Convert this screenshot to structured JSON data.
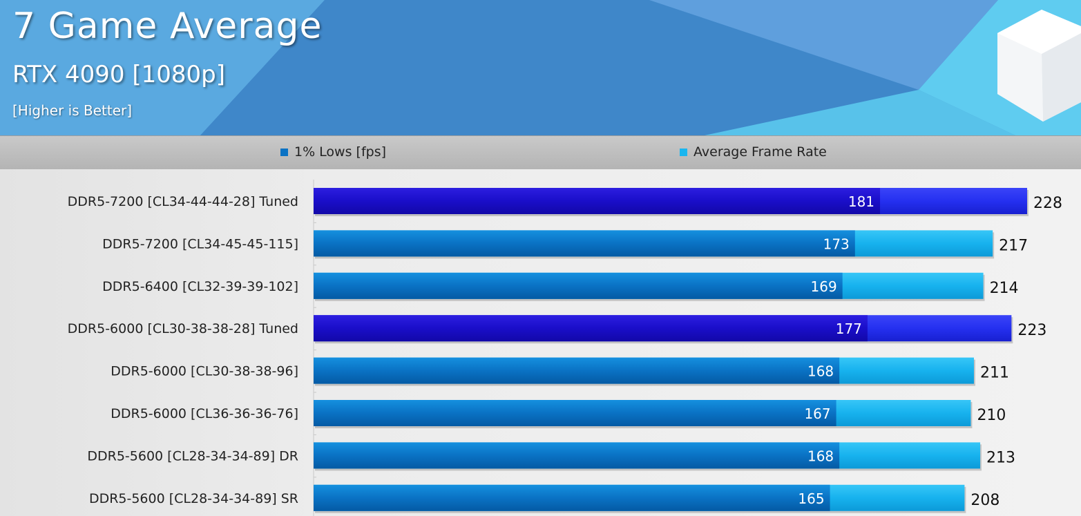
{
  "header": {
    "title": "7 Game Average",
    "subtitle": "RTX 4090 [1080p]",
    "note": "[Higher is Better]"
  },
  "legend": [
    {
      "label": "1% Lows [fps]",
      "color": "#0a72c4"
    },
    {
      "label": "Average Frame Rate",
      "color": "#19b6f0"
    }
  ],
  "colors": {
    "lows": "#0a72c4",
    "avg": "#17b2ee",
    "tuned_lows": "#1a0ec9",
    "tuned_avg": "#2530f0"
  },
  "chart_data": {
    "type": "bar",
    "orientation": "horizontal",
    "categories": [
      "DDR5-7200 [CL34-44-44-28] Tuned",
      "DDR5-7200 [CL34-45-45-115]",
      "DDR5-6400 [CL32-39-39-102]",
      "DDR5-6000 [CL30-38-38-28] Tuned",
      "DDR5-6000 [CL30-38-38-96]",
      "DDR5-6000 [CL36-36-36-76]",
      "DDR5-5600 [CL28-34-34-89] DR",
      "DDR5-5600 [CL28-34-34-89] SR"
    ],
    "highlighted": [
      true,
      false,
      false,
      true,
      false,
      false,
      false,
      false
    ],
    "series": [
      {
        "name": "1% Lows [fps]",
        "values": [
          181,
          173,
          169,
          177,
          168,
          167,
          168,
          165
        ]
      },
      {
        "name": "Average Frame Rate",
        "values": [
          228,
          217,
          214,
          223,
          211,
          210,
          213,
          208
        ]
      }
    ],
    "xlim": [
      0,
      228
    ],
    "legend_position": "top"
  }
}
